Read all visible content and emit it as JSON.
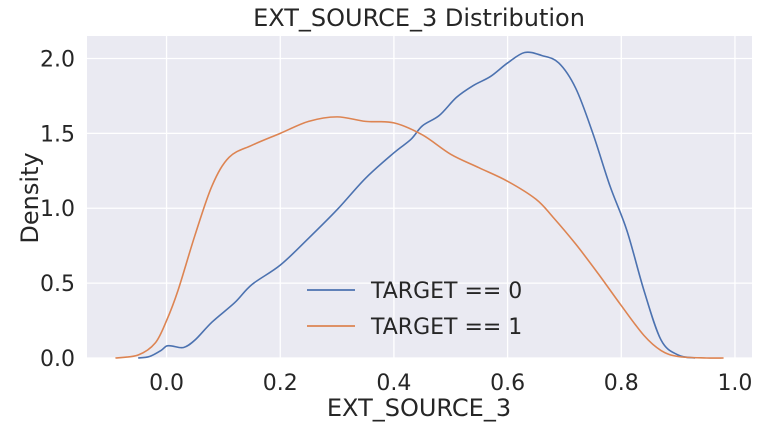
{
  "chart_data": {
    "type": "line",
    "title": "EXT_SOURCE_3 Distribution",
    "xlabel": "EXT_SOURCE_3",
    "ylabel": "Density",
    "xlim": [
      -0.14,
      1.03
    ],
    "ylim": [
      0,
      2.15
    ],
    "xticks": [
      0.0,
      0.2,
      0.4,
      0.6,
      0.8,
      1.0
    ],
    "xtick_labels": [
      "0.0",
      "0.2",
      "0.4",
      "0.6",
      "0.8",
      "1.0"
    ],
    "yticks": [
      0.0,
      0.5,
      1.0,
      1.5,
      2.0
    ],
    "ytick_labels": [
      "0.0",
      "0.5",
      "1.0",
      "1.5",
      "2.0"
    ],
    "grid": true,
    "background": "#eaeaf2",
    "legend_position": "lower-center",
    "series": [
      {
        "name": "TARGET == 0",
        "color": "#4c72b0",
        "points": [
          [
            -0.05,
            0.0
          ],
          [
            -0.03,
            0.01
          ],
          [
            -0.01,
            0.05
          ],
          [
            0.0,
            0.08
          ],
          [
            0.01,
            0.08
          ],
          [
            0.03,
            0.07
          ],
          [
            0.05,
            0.12
          ],
          [
            0.08,
            0.24
          ],
          [
            0.12,
            0.37
          ],
          [
            0.15,
            0.49
          ],
          [
            0.2,
            0.62
          ],
          [
            0.25,
            0.8
          ],
          [
            0.3,
            0.99
          ],
          [
            0.35,
            1.2
          ],
          [
            0.4,
            1.37
          ],
          [
            0.43,
            1.46
          ],
          [
            0.45,
            1.55
          ],
          [
            0.48,
            1.62
          ],
          [
            0.51,
            1.74
          ],
          [
            0.54,
            1.82
          ],
          [
            0.57,
            1.88
          ],
          [
            0.6,
            1.97
          ],
          [
            0.63,
            2.04
          ],
          [
            0.66,
            2.02
          ],
          [
            0.69,
            1.97
          ],
          [
            0.72,
            1.8
          ],
          [
            0.75,
            1.5
          ],
          [
            0.78,
            1.15
          ],
          [
            0.81,
            0.85
          ],
          [
            0.84,
            0.45
          ],
          [
            0.87,
            0.12
          ],
          [
            0.9,
            0.02
          ],
          [
            0.93,
            0.0
          ]
        ]
      },
      {
        "name": "TARGET == 1",
        "color": "#dd8452",
        "points": [
          [
            -0.09,
            0.0
          ],
          [
            -0.05,
            0.02
          ],
          [
            -0.02,
            0.1
          ],
          [
            0.0,
            0.25
          ],
          [
            0.02,
            0.45
          ],
          [
            0.05,
            0.82
          ],
          [
            0.08,
            1.15
          ],
          [
            0.11,
            1.34
          ],
          [
            0.15,
            1.42
          ],
          [
            0.2,
            1.5
          ],
          [
            0.25,
            1.58
          ],
          [
            0.3,
            1.61
          ],
          [
            0.35,
            1.58
          ],
          [
            0.4,
            1.57
          ],
          [
            0.45,
            1.49
          ],
          [
            0.5,
            1.36
          ],
          [
            0.55,
            1.27
          ],
          [
            0.6,
            1.18
          ],
          [
            0.65,
            1.06
          ],
          [
            0.68,
            0.94
          ],
          [
            0.72,
            0.76
          ],
          [
            0.76,
            0.56
          ],
          [
            0.8,
            0.35
          ],
          [
            0.84,
            0.15
          ],
          [
            0.87,
            0.05
          ],
          [
            0.9,
            0.01
          ],
          [
            0.95,
            0.0
          ],
          [
            0.98,
            0.0
          ]
        ]
      }
    ]
  }
}
